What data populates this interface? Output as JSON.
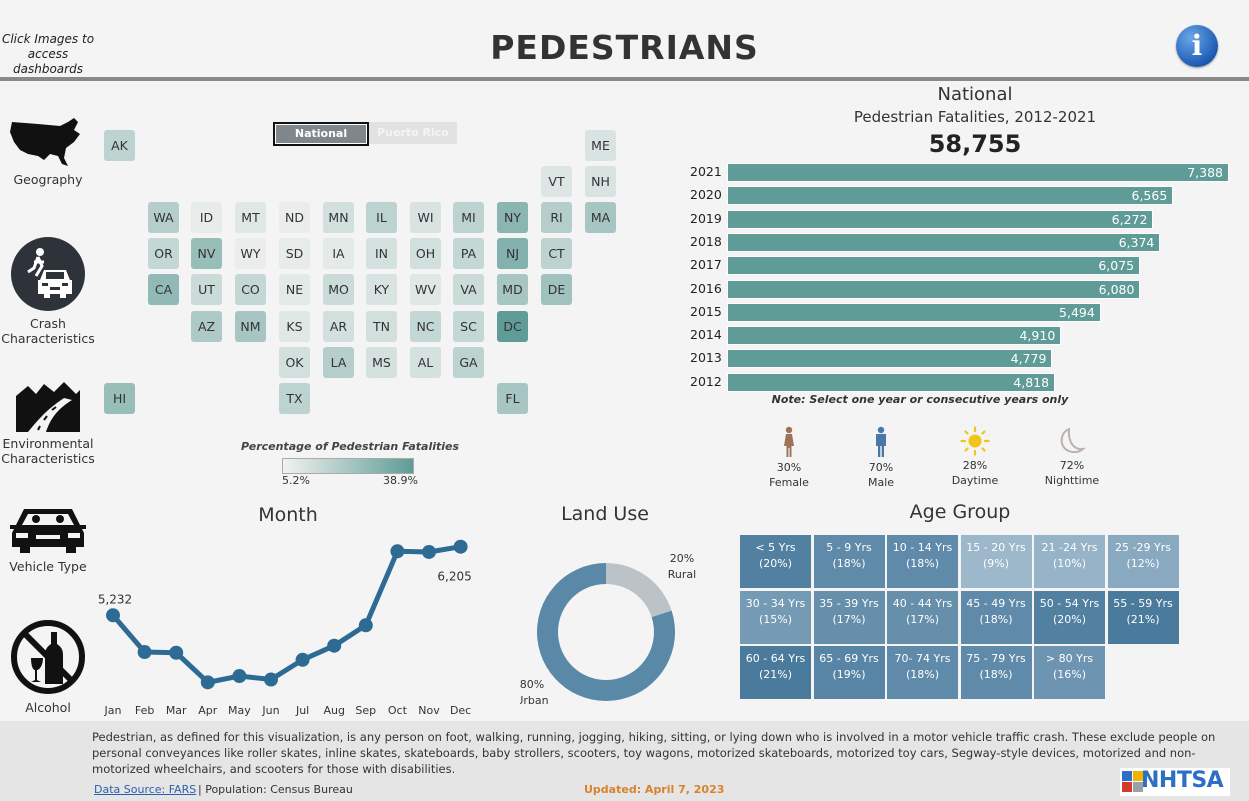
{
  "header": {
    "hint": "Click Images to access dashboards",
    "title": "PEDESTRIANS",
    "info_icon": "info-icon"
  },
  "nav": [
    {
      "label": "Geography",
      "icon": "usa-map-icon"
    },
    {
      "label": "Crash Characteristics",
      "icon": "pedestrian-car-icon"
    },
    {
      "label": "Environmental Characteristics",
      "icon": "mountain-road-icon"
    },
    {
      "label": "Vehicle Type",
      "icon": "car-front-icon"
    },
    {
      "label": "Alcohol",
      "icon": "no-alcohol-icon"
    }
  ],
  "map": {
    "toggle": {
      "national": "National",
      "puerto_rico": "Puerto Rico",
      "selected": "National"
    },
    "legend": {
      "title": "Percentage of Pedestrian Fatalities",
      "min": "5.2%",
      "max": "38.9%",
      "color_low": "#f2f2f0",
      "color_high": "#5f9c97"
    },
    "states": [
      {
        "code": "AK",
        "row": 0,
        "col": 0,
        "level": 0.35
      },
      {
        "code": "ME",
        "row": 0,
        "col": 11,
        "level": 0.15
      },
      {
        "code": "VT",
        "row": 1,
        "col": 10,
        "level": 0.12
      },
      {
        "code": "NH",
        "row": 1,
        "col": 11,
        "level": 0.15
      },
      {
        "code": "WA",
        "row": 2,
        "col": 1,
        "level": 0.4
      },
      {
        "code": "ID",
        "row": 2,
        "col": 2,
        "level": 0.05
      },
      {
        "code": "MT",
        "row": 2,
        "col": 3,
        "level": 0.1
      },
      {
        "code": "ND",
        "row": 2,
        "col": 4,
        "level": 0.03
      },
      {
        "code": "MN",
        "row": 2,
        "col": 5,
        "level": 0.2
      },
      {
        "code": "IL",
        "row": 2,
        "col": 6,
        "level": 0.35
      },
      {
        "code": "WI",
        "row": 2,
        "col": 7,
        "level": 0.15
      },
      {
        "code": "MI",
        "row": 2,
        "col": 8,
        "level": 0.35
      },
      {
        "code": "NY",
        "row": 2,
        "col": 9,
        "level": 0.7
      },
      {
        "code": "RI",
        "row": 2,
        "col": 10,
        "level": 0.4
      },
      {
        "code": "MA",
        "row": 2,
        "col": 11,
        "level": 0.5
      },
      {
        "code": "OR",
        "row": 3,
        "col": 1,
        "level": 0.3
      },
      {
        "code": "NV",
        "row": 3,
        "col": 2,
        "level": 0.6
      },
      {
        "code": "WY",
        "row": 3,
        "col": 3,
        "level": 0.03
      },
      {
        "code": "SD",
        "row": 3,
        "col": 4,
        "level": 0.05
      },
      {
        "code": "IA",
        "row": 3,
        "col": 5,
        "level": 0.07
      },
      {
        "code": "IN",
        "row": 3,
        "col": 6,
        "level": 0.18
      },
      {
        "code": "OH",
        "row": 3,
        "col": 7,
        "level": 0.2
      },
      {
        "code": "PA",
        "row": 3,
        "col": 8,
        "level": 0.3
      },
      {
        "code": "NJ",
        "row": 3,
        "col": 9,
        "level": 0.75
      },
      {
        "code": "CT",
        "row": 3,
        "col": 10,
        "level": 0.35
      },
      {
        "code": "CA",
        "row": 4,
        "col": 1,
        "level": 0.65
      },
      {
        "code": "UT",
        "row": 4,
        "col": 2,
        "level": 0.25
      },
      {
        "code": "CO",
        "row": 4,
        "col": 3,
        "level": 0.3
      },
      {
        "code": "NE",
        "row": 4,
        "col": 4,
        "level": 0.08
      },
      {
        "code": "MO",
        "row": 4,
        "col": 5,
        "level": 0.25
      },
      {
        "code": "KY",
        "row": 4,
        "col": 6,
        "level": 0.15
      },
      {
        "code": "WV",
        "row": 4,
        "col": 7,
        "level": 0.1
      },
      {
        "code": "VA",
        "row": 4,
        "col": 8,
        "level": 0.25
      },
      {
        "code": "MD",
        "row": 4,
        "col": 9,
        "level": 0.5
      },
      {
        "code": "DE",
        "row": 4,
        "col": 10,
        "level": 0.55
      },
      {
        "code": "AZ",
        "row": 5,
        "col": 2,
        "level": 0.45
      },
      {
        "code": "NM",
        "row": 5,
        "col": 3,
        "level": 0.5
      },
      {
        "code": "KS",
        "row": 5,
        "col": 4,
        "level": 0.1
      },
      {
        "code": "AR",
        "row": 5,
        "col": 5,
        "level": 0.2
      },
      {
        "code": "TN",
        "row": 5,
        "col": 6,
        "level": 0.2
      },
      {
        "code": "NC",
        "row": 5,
        "col": 7,
        "level": 0.3
      },
      {
        "code": "SC",
        "row": 5,
        "col": 8,
        "level": 0.3
      },
      {
        "code": "DC",
        "row": 5,
        "col": 9,
        "level": 1.0
      },
      {
        "code": "OK",
        "row": 6,
        "col": 4,
        "level": 0.2
      },
      {
        "code": "LA",
        "row": 6,
        "col": 5,
        "level": 0.4
      },
      {
        "code": "MS",
        "row": 6,
        "col": 6,
        "level": 0.18
      },
      {
        "code": "AL",
        "row": 6,
        "col": 7,
        "level": 0.18
      },
      {
        "code": "GA",
        "row": 6,
        "col": 8,
        "level": 0.35
      },
      {
        "code": "HI",
        "row": 7,
        "col": 0,
        "level": 0.6
      },
      {
        "code": "TX",
        "row": 7,
        "col": 4,
        "level": 0.35
      },
      {
        "code": "FL",
        "row": 7,
        "col": 9,
        "level": 0.5
      }
    ]
  },
  "national": {
    "heading": "National",
    "subtitle": "Pedestrian Fatalities,  2012-2021",
    "total": "58,755",
    "note": "Note: Select one year or consecutive years only",
    "bar_color": "#5f9c97"
  },
  "stats": [
    {
      "value": "30%",
      "label": "Female",
      "icon": "female-icon",
      "color": "#9c7356"
    },
    {
      "value": "70%",
      "label": "Male",
      "icon": "male-icon",
      "color": "#4a76a8"
    },
    {
      "value": "28%",
      "label": "Daytime",
      "icon": "sun-icon",
      "color": "#f0c419"
    },
    {
      "value": "72%",
      "label": "Nighttime",
      "icon": "moon-icon",
      "color": "#bbb2ad"
    }
  ],
  "land_use": {
    "title": "Land Use"
  },
  "age_group": {
    "title": "Age Group"
  },
  "footer": {
    "definition": "Pedestrian, as defined for this visualization, is any person on foot, walking, running, jogging, hiking, sitting, or lying down who is involved in a motor vehicle traffic crash. These exclude people on personal conveyances like roller skates, inline skates, skateboards, baby strollers, scooters, toy wagons, motorized skateboards, motorized toy cars, Segway-style devices, motorized and non-motorized wheelchairs, and scooters for those with disabilities.",
    "source_link": "Data Source: FARS",
    "population": "| Population: Census Bureau",
    "updated": "Updated: April 7, 2023",
    "logo_text": "NHTSA"
  },
  "chart_data": [
    {
      "type": "bar",
      "title": "Pedestrian Fatalities, 2012-2021",
      "orientation": "horizontal",
      "categories": [
        "2021",
        "2020",
        "2019",
        "2018",
        "2017",
        "2016",
        "2015",
        "2014",
        "2013",
        "2012"
      ],
      "values": [
        7388,
        6565,
        6272,
        6374,
        6075,
        6080,
        5494,
        4910,
        4779,
        4818
      ],
      "labels": [
        "7,388",
        "6,565",
        "6,272",
        "6,374",
        "6,075",
        "6,080",
        "5,494",
        "4,910",
        "4,779",
        "4,818"
      ],
      "xlim": [
        0,
        7388
      ]
    },
    {
      "type": "line",
      "title": "Month",
      "categories": [
        "Jan",
        "Feb",
        "Mar",
        "Apr",
        "May",
        "Jun",
        "Jul",
        "Aug",
        "Sep",
        "Oct",
        "Nov",
        "Dec"
      ],
      "values": [
        5232,
        4710,
        4700,
        4280,
        4370,
        4320,
        4600,
        4800,
        5090,
        6140,
        6130,
        6205
      ],
      "labels": {
        "Jan": "5,232",
        "Dec": "6,205"
      },
      "ylim": [
        4200,
        6300
      ],
      "color": "#2e6b94"
    },
    {
      "type": "pie",
      "title": "Land Use",
      "donut": true,
      "categories": [
        "Rural",
        "Urban"
      ],
      "values": [
        20,
        80
      ],
      "labels": [
        "20%",
        "80%"
      ],
      "colors": [
        "#bcc3c8",
        "#5a89a8"
      ]
    },
    {
      "type": "heatmap",
      "title": "Age Group",
      "cells": [
        {
          "label": "< 5 Yrs",
          "pct": 20,
          "text": "(20%)"
        },
        {
          "label": "5 - 9 Yrs",
          "pct": 18,
          "text": "(18%)"
        },
        {
          "label": "10 - 14 Yrs",
          "pct": 18,
          "text": "(18%)"
        },
        {
          "label": "15 - 20 Yrs",
          "pct": 9,
          "text": "(9%)"
        },
        {
          "label": "21 -24 Yrs",
          "pct": 10,
          "text": "(10%)"
        },
        {
          "label": "25 -29 Yrs",
          "pct": 12,
          "text": "(12%)"
        },
        {
          "label": "30 - 34 Yrs",
          "pct": 15,
          "text": "(15%)"
        },
        {
          "label": "35 - 39 Yrs",
          "pct": 17,
          "text": "(17%)"
        },
        {
          "label": "40 - 44 Yrs",
          "pct": 17,
          "text": "(17%)"
        },
        {
          "label": "45 - 49 Yrs",
          "pct": 18,
          "text": "(18%)"
        },
        {
          "label": "50 - 54 Yrs",
          "pct": 20,
          "text": "(20%)"
        },
        {
          "label": "55 - 59 Yrs",
          "pct": 21,
          "text": "(21%)"
        },
        {
          "label": "60 - 64 Yrs",
          "pct": 21,
          "text": "(21%)"
        },
        {
          "label": "65 - 69 Yrs",
          "pct": 19,
          "text": "(19%)"
        },
        {
          "label": "70- 74 Yrs",
          "pct": 18,
          "text": "(18%)"
        },
        {
          "label": "75 - 79 Yrs",
          "pct": 18,
          "text": "(18%)"
        },
        {
          "label": "> 80 Yrs",
          "pct": 16,
          "text": "(16%)"
        }
      ],
      "color_low": "#9db8cb",
      "color_high": "#4a7b9d"
    }
  ]
}
